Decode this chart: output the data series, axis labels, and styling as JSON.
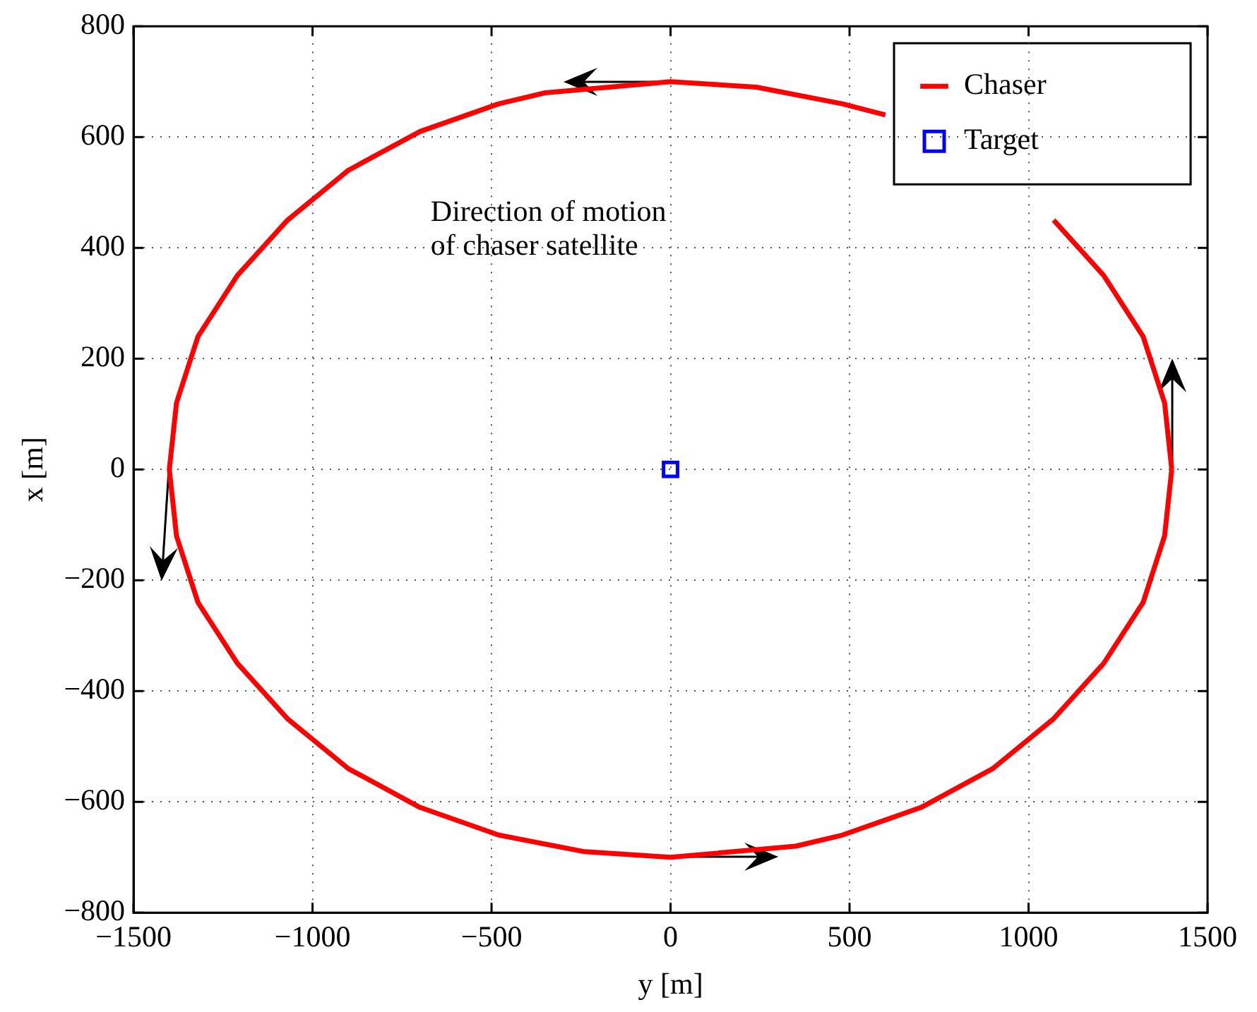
{
  "chart_data": {
    "type": "line",
    "xlabel": "y [m]",
    "ylabel": "x [m]",
    "xlim": [
      -1500,
      1500
    ],
    "ylim": [
      -800,
      800
    ],
    "xticks": [
      {
        "value": -1500,
        "label": "−1500"
      },
      {
        "value": -1000,
        "label": "−1000"
      },
      {
        "value": -500,
        "label": "−500"
      },
      0,
      500,
      1000,
      1500
    ],
    "yticks": [
      {
        "value": -800,
        "label": "−800"
      },
      {
        "value": -600,
        "label": "−600"
      },
      {
        "value": -400,
        "label": "−400"
      },
      {
        "value": -200,
        "label": "−200"
      },
      0,
      200,
      400,
      600,
      800
    ],
    "grid": true,
    "legend": "top right",
    "annotations": [
      "Direction of motion\nof chaser satellite"
    ],
    "series": [
      {
        "name": "Chaser",
        "type": "line",
        "color": "#ff0000",
        "marker": "none",
        "line_style": "solid",
        "x": [
          1400,
          1380,
          1320,
          1210,
          1070,
          900,
          700,
          600,
          480,
          240,
          0,
          -350,
          -480,
          -700,
          -900,
          -1070,
          -1210,
          -1320,
          -1380,
          -1400,
          -1380,
          -1320,
          -1210,
          -1070,
          -900,
          -700,
          -480,
          -240,
          0,
          350,
          480,
          700,
          900,
          1070,
          1210,
          1320,
          1380,
          1400
        ],
        "values": [
          0,
          120,
          240,
          350,
          450,
          null,
          null,
          640,
          660,
          690,
          700,
          680,
          660,
          610,
          540,
          450,
          350,
          240,
          120,
          0,
          -120,
          -240,
          -350,
          -450,
          -540,
          -610,
          -660,
          -690,
          -700,
          -680,
          -660,
          -610,
          -540,
          -450,
          -350,
          -240,
          -120,
          0
        ]
      },
      {
        "name": "Target",
        "type": "scatter",
        "color": "#0000ff",
        "marker": "square",
        "x": [
          0
        ],
        "values": [
          0
        ]
      }
    ]
  }
}
